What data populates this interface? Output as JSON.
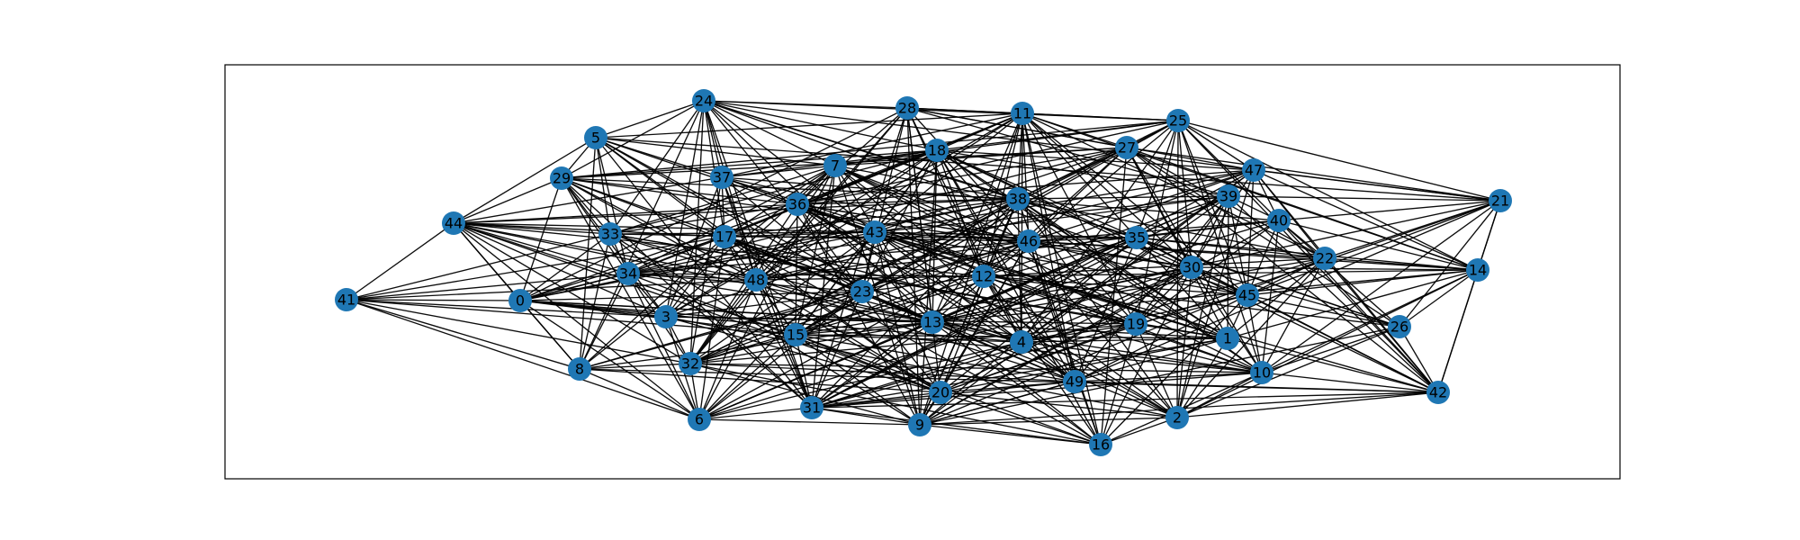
{
  "graph": {
    "node_color": "#1f77b4",
    "edge_color": "#000000",
    "label_color": "#000000",
    "nodes": [
      "0",
      "1",
      "2",
      "3",
      "4",
      "5",
      "6",
      "7",
      "8",
      "9",
      "10",
      "11",
      "12",
      "13",
      "14",
      "15",
      "16",
      "17",
      "18",
      "19",
      "20",
      "21",
      "22",
      "23",
      "24",
      "25",
      "26",
      "27",
      "28",
      "29",
      "30",
      "31",
      "32",
      "33",
      "34",
      "35",
      "36",
      "37",
      "38",
      "39",
      "40",
      "41",
      "42",
      "43",
      "44",
      "45",
      "46",
      "47",
      "48",
      "49"
    ]
  }
}
